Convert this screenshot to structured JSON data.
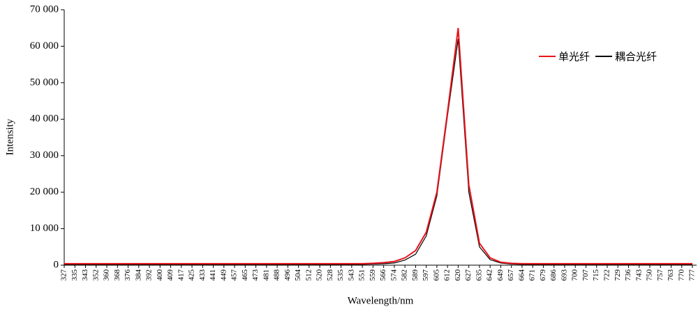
{
  "chart_data": {
    "type": "line",
    "x_label": "Wavelength/nm",
    "y_label": "Intensity",
    "categories": [
      "327",
      "335",
      "343",
      "352",
      "360",
      "368",
      "376",
      "384",
      "392",
      "400",
      "409",
      "417",
      "425",
      "433",
      "441",
      "449",
      "457",
      "465",
      "473",
      "481",
      "488",
      "496",
      "504",
      "512",
      "520",
      "528",
      "535",
      "543",
      "551",
      "559",
      "566",
      "574",
      "582",
      "589",
      "597",
      "605",
      "612",
      "620",
      "627",
      "635",
      "642",
      "649",
      "657",
      "664",
      "671",
      "679",
      "686",
      "693",
      "700",
      "707",
      "715",
      "722",
      "729",
      "736",
      "743",
      "750",
      "757",
      "763",
      "770",
      "777"
    ],
    "series": [
      {
        "name": "单光纤",
        "color": "#e8141c",
        "values": [
          400,
          400,
          400,
          400,
          400,
          400,
          400,
          400,
          400,
          400,
          400,
          400,
          400,
          400,
          400,
          400,
          400,
          400,
          400,
          400,
          400,
          400,
          400,
          400,
          400,
          400,
          400,
          400,
          400,
          500,
          700,
          1000,
          2000,
          4000,
          9000,
          20000,
          42000,
          65000,
          22000,
          6000,
          2000,
          800,
          500,
          400,
          400,
          400,
          400,
          400,
          400,
          400,
          400,
          400,
          400,
          400,
          400,
          400,
          400,
          400,
          400,
          400
        ]
      },
      {
        "name": "耦合光纤",
        "color": "#000000",
        "values": [
          200,
          200,
          200,
          200,
          200,
          200,
          200,
          200,
          200,
          200,
          200,
          200,
          200,
          200,
          200,
          200,
          200,
          200,
          200,
          200,
          200,
          200,
          200,
          200,
          200,
          200,
          200,
          200,
          200,
          300,
          400,
          600,
          1400,
          3000,
          8000,
          19000,
          41000,
          62000,
          20000,
          5000,
          1500,
          600,
          300,
          200,
          200,
          200,
          200,
          200,
          200,
          200,
          200,
          200,
          200,
          200,
          200,
          200,
          200,
          200,
          200,
          200
        ]
      }
    ],
    "ylim": [
      0,
      70000
    ],
    "yticks": [
      0,
      {
        "value": 10000,
        "label": "10 000"
      },
      {
        "value": 20000,
        "label": "20 000"
      },
      {
        "value": 30000,
        "label": "30 000"
      },
      {
        "value": 40000,
        "label": "40 000"
      },
      {
        "value": 50000,
        "label": "50 000"
      },
      {
        "value": 60000,
        "label": "60 000"
      },
      {
        "value": 70000,
        "label": "70 000"
      }
    ],
    "legend": "top-right"
  }
}
